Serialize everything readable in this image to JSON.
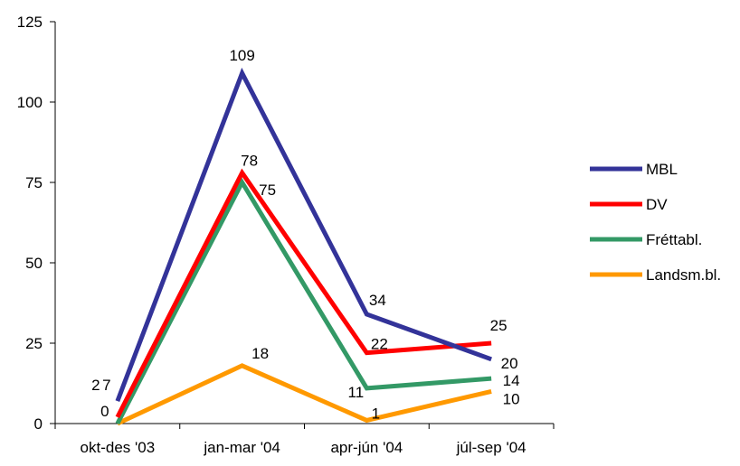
{
  "chart_data": {
    "type": "line",
    "categories": [
      "okt-des '03",
      "jan-mar '04",
      "apr-jún '04",
      "júl-sep '04"
    ],
    "ylim": [
      0,
      125
    ],
    "yticks": [
      "0",
      "25",
      "50",
      "75",
      "100",
      "125"
    ],
    "grid": false,
    "legend": "right",
    "series": [
      {
        "name": "MBL",
        "color": "#333399",
        "values": [
          7,
          109,
          34,
          20
        ],
        "labels": [
          "7",
          "109",
          "34",
          "20"
        ]
      },
      {
        "name": "DV",
        "color": "#ff0000",
        "values": [
          2,
          78,
          22,
          25
        ],
        "labels": [
          "2",
          "78",
          "22",
          "25"
        ]
      },
      {
        "name": "Fréttabl.",
        "color": "#339966",
        "values": [
          0,
          75,
          11,
          14
        ],
        "labels": [
          "0",
          "75",
          "11",
          "14"
        ]
      },
      {
        "name": "Landsm.bl.",
        "color": "#ff9900",
        "values": [
          0,
          18,
          1,
          10
        ],
        "labels": [
          "",
          "18",
          "1",
          "10"
        ]
      }
    ]
  }
}
